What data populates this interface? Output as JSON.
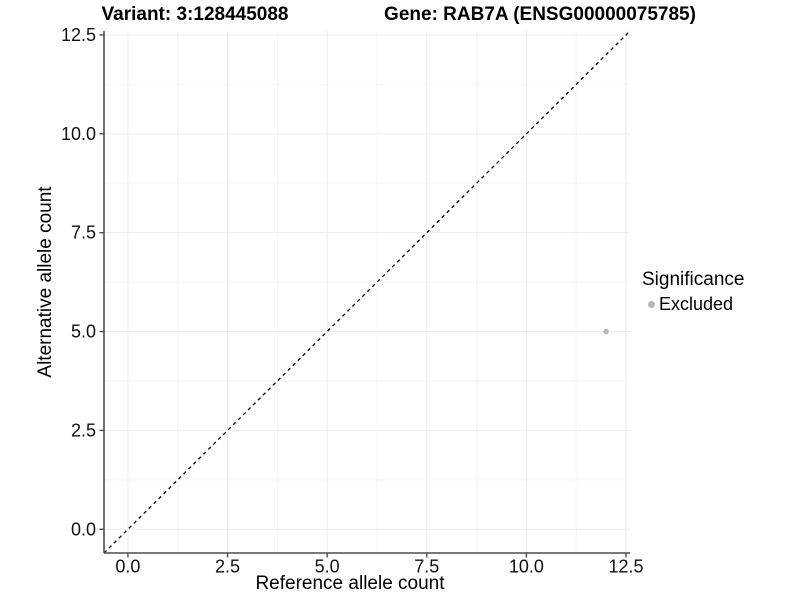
{
  "chart_data": {
    "type": "scatter",
    "title_left": "Variant: 3:128445088",
    "title_right": "Gene: RAB7A (ENSG00000075785)",
    "xlabel": "Reference allele count",
    "ylabel": "Alternative allele count",
    "xlim": [
      -0.6,
      12.6
    ],
    "ylim": [
      -0.6,
      12.6
    ],
    "x_ticks": [
      0,
      2.5,
      5,
      7.5,
      10,
      12.5
    ],
    "x_tick_labels": [
      "0.0",
      "2.5",
      "5.0",
      "7.5",
      "10.0",
      "12.5"
    ],
    "y_ticks": [
      0,
      2.5,
      5,
      7.5,
      10,
      12.5
    ],
    "y_tick_labels": [
      "0.0",
      "2.5",
      "5.0",
      "7.5",
      "10.0",
      "12.5"
    ],
    "grid": {
      "major": true,
      "minor": true
    },
    "identity_line": {
      "slope": 1,
      "intercept": 0,
      "style": "dashed",
      "color": "#000000"
    },
    "series": [
      {
        "name": "Excluded",
        "color": "#b5b5b5",
        "points": [
          {
            "x": 12,
            "y": 5
          }
        ]
      }
    ],
    "legend": {
      "title": "Significance",
      "position": "right",
      "items": [
        {
          "label": "Excluded",
          "color": "#b5b5b5"
        }
      ]
    },
    "colors": {
      "grid_major": "#ebebeb",
      "grid_minor": "#f5f5f5",
      "axis": "#4d4d4d",
      "tick_label": "#111111"
    }
  }
}
